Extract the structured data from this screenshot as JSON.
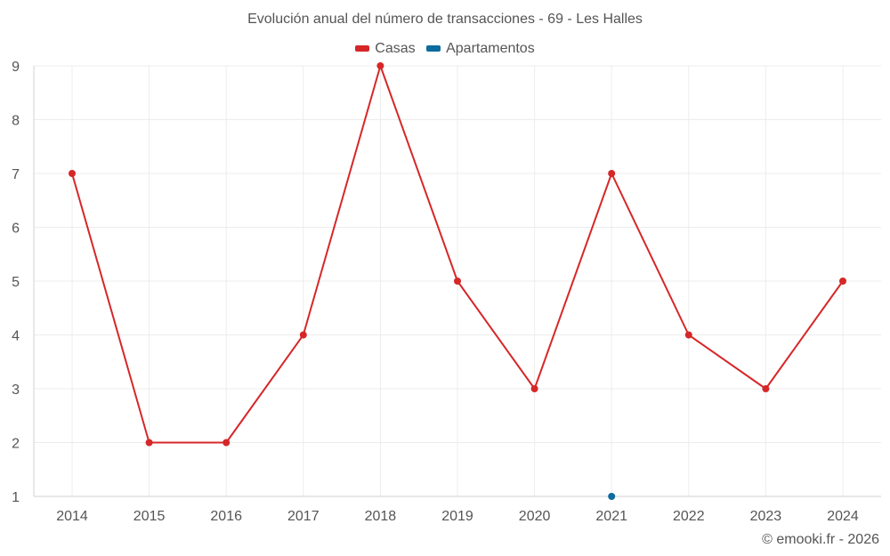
{
  "chart_data": {
    "type": "line",
    "title": "Evolución anual del número de transacciones - 69 - Les Halles",
    "categories": [
      "2014",
      "2015",
      "2016",
      "2017",
      "2018",
      "2019",
      "2020",
      "2021",
      "2022",
      "2023",
      "2024"
    ],
    "series": [
      {
        "name": "Casas",
        "color": "#d62728",
        "values": [
          7,
          2,
          2,
          4,
          9,
          5,
          3,
          7,
          4,
          3,
          5
        ]
      },
      {
        "name": "Apartamentos",
        "color": "#0d6b9e",
        "values": [
          null,
          null,
          null,
          null,
          null,
          null,
          null,
          1,
          null,
          null,
          null
        ]
      }
    ],
    "ylim": [
      1,
      9
    ],
    "yticks": [
      1,
      2,
      3,
      4,
      5,
      6,
      7,
      8,
      9
    ],
    "grid": true,
    "legend_position": "top-center"
  },
  "credit": "© emooki.fr - 2026"
}
